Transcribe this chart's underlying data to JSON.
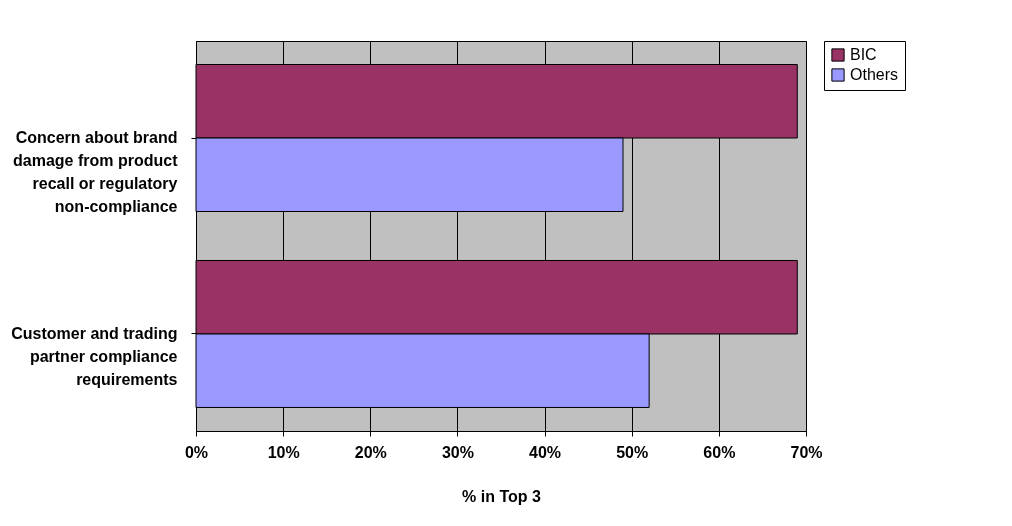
{
  "chart_data": {
    "type": "bar",
    "orientation": "horizontal",
    "xlabel": "% in Top 3",
    "categories": [
      "Concern about brand damage from product recall or regulatory non-compliance",
      "Customer and trading partner compliance requirements"
    ],
    "series": [
      {
        "name": "BIC",
        "color": "#993366",
        "values": [
          69,
          69
        ]
      },
      {
        "name": "Others",
        "color": "#9999ff",
        "values": [
          49,
          52
        ]
      }
    ],
    "xlim": [
      0,
      70
    ],
    "xticks": [
      {
        "value": 0,
        "label": "0%"
      },
      {
        "value": 10,
        "label": "10%"
      },
      {
        "value": 20,
        "label": "20%"
      },
      {
        "value": 30,
        "label": "30%"
      },
      {
        "value": 40,
        "label": "40%"
      },
      {
        "value": 50,
        "label": "50%"
      },
      {
        "value": 60,
        "label": "60%"
      },
      {
        "value": 70,
        "label": "70%"
      }
    ],
    "grid": "x",
    "legend": "right"
  }
}
